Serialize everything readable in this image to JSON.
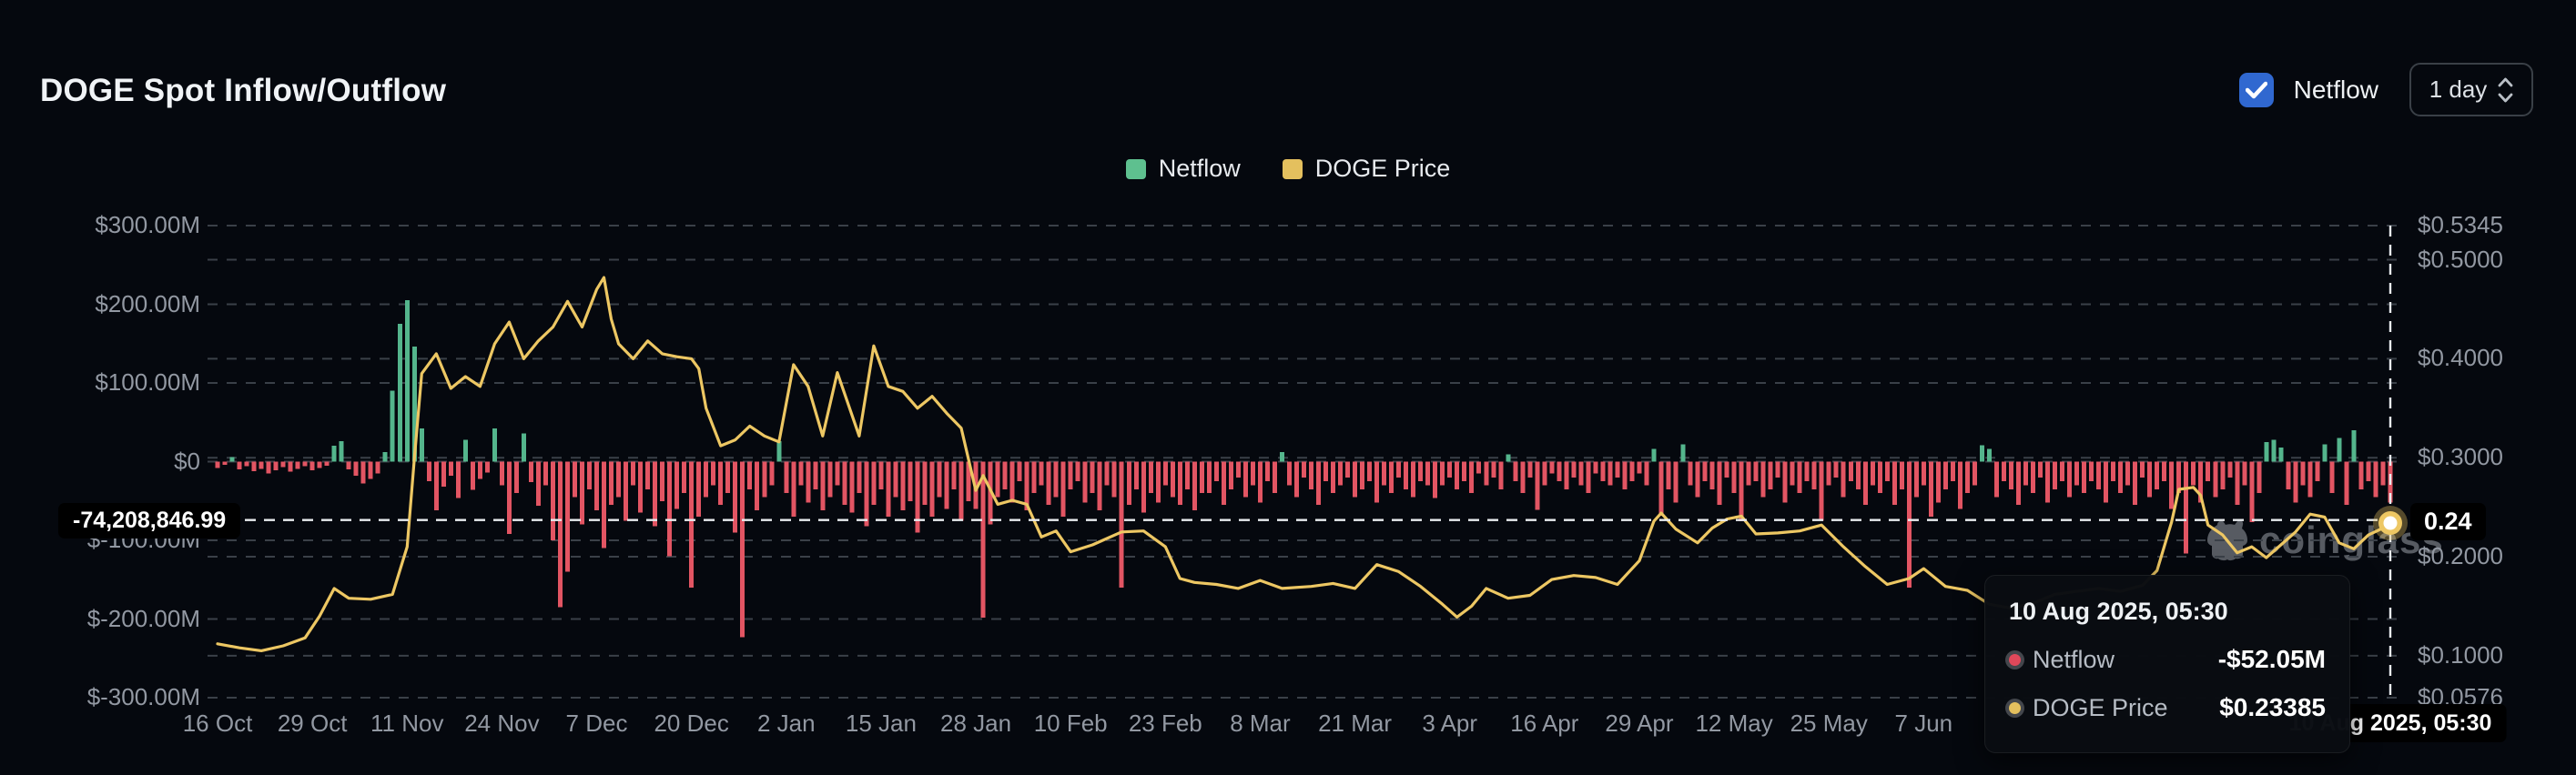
{
  "header": {
    "title": "DOGE Spot Inflow/Outflow",
    "netflow_toggle": {
      "label": "Netflow",
      "checked": true,
      "color": "#3068d0"
    },
    "interval_select": {
      "value": "1 day"
    }
  },
  "legend": [
    {
      "label": "Netflow",
      "color": "#5ec08f"
    },
    {
      "label": "DOGE Price",
      "color": "#e4c05e"
    }
  ],
  "watermark": {
    "text": "coinglass"
  },
  "axes": {
    "left_ticks": [
      {
        "label": "$300.00M",
        "value": 300
      },
      {
        "label": "$200.00M",
        "value": 200
      },
      {
        "label": "$100.00M",
        "value": 100
      },
      {
        "label": "$0",
        "value": 0
      },
      {
        "label": "$-100.00M",
        "value": -100
      },
      {
        "label": "$-200.00M",
        "value": -200
      },
      {
        "label": "$-300.00M",
        "value": -300
      }
    ],
    "right_ticks": [
      {
        "label": "$0.5345",
        "value": 0.5345
      },
      {
        "label": "$0.5000",
        "value": 0.5
      },
      {
        "label": "$0.4000",
        "value": 0.4
      },
      {
        "label": "$0.3000",
        "value": 0.3
      },
      {
        "label": "$0.2000",
        "value": 0.2
      },
      {
        "label": "$0.1000",
        "value": 0.1
      },
      {
        "label": "$0.0576",
        "value": 0.0576
      }
    ],
    "x_ticks": [
      {
        "label": "16 Oct",
        "day": 0
      },
      {
        "label": "29 Oct",
        "day": 13
      },
      {
        "label": "11 Nov",
        "day": 26
      },
      {
        "label": "24 Nov",
        "day": 39
      },
      {
        "label": "7 Dec",
        "day": 52
      },
      {
        "label": "20 Dec",
        "day": 65
      },
      {
        "label": "2 Jan",
        "day": 78
      },
      {
        "label": "15 Jan",
        "day": 91
      },
      {
        "label": "28 Jan",
        "day": 104
      },
      {
        "label": "10 Feb",
        "day": 117
      },
      {
        "label": "23 Feb",
        "day": 130
      },
      {
        "label": "8 Mar",
        "day": 143
      },
      {
        "label": "21 Mar",
        "day": 156
      },
      {
        "label": "3 Apr",
        "day": 169
      },
      {
        "label": "16 Apr",
        "day": 182
      },
      {
        "label": "29 Apr",
        "day": 195
      },
      {
        "label": "12 May",
        "day": 208
      },
      {
        "label": "25 May",
        "day": 221
      },
      {
        "label": "7 Jun",
        "day": 234
      }
    ]
  },
  "crosshair": {
    "day": 298,
    "netflow_musd": -74.20884699,
    "price": 0.234,
    "left_label": "-74,208,846.99",
    "right_label": "0.24",
    "date_label": "10 Aug 2025, 05:30"
  },
  "tooltip": {
    "date": "10 Aug 2025, 05:30",
    "rows": [
      {
        "label": "Netflow",
        "value": "-$52.05M",
        "marker_color": "#e0485a"
      },
      {
        "label": "DOGE Price",
        "value": "$0.23385",
        "marker_color": "#e4c05e"
      }
    ]
  },
  "chart_data": {
    "type": "bar+line",
    "title": "DOGE Spot Inflow/Outflow",
    "x_axis": {
      "start_label": "16 Oct",
      "end_label": "10 Aug 2025, 05:30",
      "day_span": 298,
      "grid": "dashed"
    },
    "money_axis": {
      "min": -300,
      "max": 300,
      "unit": "$M",
      "side": "left"
    },
    "price_axis": {
      "min": 0.0576,
      "max": 0.5345,
      "unit": "$",
      "side": "right"
    },
    "colors": {
      "positive": "#54b58c",
      "negative": "#e25563",
      "price_line": "#edc763"
    },
    "series": [
      {
        "name": "Netflow",
        "kind": "bar",
        "unit": "million USD per day, day 0 = 16 Oct",
        "values": [
          -8,
          -4,
          6,
          -10,
          -6,
          -12,
          -9,
          -15,
          -11,
          -7,
          -13,
          -9,
          -6,
          -11,
          -8,
          -5,
          20,
          26,
          -10,
          -18,
          -28,
          -22,
          -15,
          12,
          90,
          175,
          205,
          146,
          42,
          -25,
          -62,
          -32,
          -18,
          -46,
          28,
          -36,
          -22,
          -14,
          42,
          -30,
          -92,
          -40,
          36,
          -26,
          -56,
          -30,
          -100,
          -185,
          -140,
          -45,
          -80,
          -35,
          -62,
          -110,
          -55,
          -45,
          -75,
          -30,
          -65,
          -35,
          -82,
          -50,
          -120,
          -60,
          -40,
          -160,
          -70,
          -45,
          -30,
          -55,
          -40,
          -90,
          -223,
          -35,
          -62,
          -45,
          -30,
          26,
          -40,
          -70,
          -30,
          -52,
          -35,
          -62,
          -45,
          -30,
          -55,
          -65,
          -40,
          -82,
          -55,
          -35,
          -70,
          -45,
          -62,
          -50,
          -90,
          -55,
          -70,
          -45,
          -60,
          -35,
          -75,
          -50,
          -60,
          -198,
          -80,
          -45,
          -35,
          -52,
          -25,
          -62,
          -40,
          -30,
          -55,
          -45,
          -70,
          -35,
          -25,
          -52,
          -40,
          -62,
          -30,
          -45,
          -160,
          -55,
          -35,
          -65,
          -40,
          -52,
          -30,
          -45,
          -55,
          -35,
          -62,
          -40,
          -40,
          -25,
          -55,
          -35,
          -20,
          -45,
          -30,
          -52,
          -25,
          -40,
          12,
          -30,
          -45,
          -20,
          -35,
          -55,
          -25,
          -40,
          -30,
          -20,
          -45,
          -35,
          -25,
          -52,
          -30,
          -40,
          -20,
          -35,
          -45,
          -25,
          -30,
          -46,
          -30,
          -20,
          -35,
          -25,
          -40,
          -15,
          -30,
          -20,
          -35,
          9,
          -25,
          -40,
          -20,
          -61,
          -30,
          -15,
          -25,
          -35,
          -20,
          -30,
          -40,
          -15,
          -25,
          -30,
          -20,
          -35,
          -25,
          -15,
          -30,
          16,
          -69,
          -35,
          -52,
          22,
          -30,
          -45,
          -25,
          -35,
          -55,
          -20,
          -40,
          -76,
          -30,
          -25,
          -45,
          -35,
          -20,
          -52,
          -30,
          -40,
          -25,
          -35,
          -75,
          -30,
          -20,
          -45,
          -25,
          -35,
          -55,
          -30,
          -40,
          -25,
          -55,
          -35,
          -160,
          -45,
          -30,
          -70,
          -52,
          -35,
          -25,
          -60,
          -40,
          -30,
          21,
          16,
          -45,
          -25,
          -35,
          -55,
          -30,
          -40,
          -20,
          -52,
          -35,
          -25,
          -45,
          -30,
          -40,
          -25,
          -35,
          -52,
          -25,
          -40,
          -30,
          -55,
          -20,
          -45,
          -35,
          -25,
          -60,
          -40,
          -117,
          -30,
          -52,
          -25,
          -45,
          -35,
          -20,
          -55,
          -30,
          -77,
          -40,
          25,
          28,
          18,
          -35,
          -52,
          -30,
          -45,
          -25,
          22,
          -40,
          30,
          -55,
          40,
          -35,
          -25,
          -45,
          -30,
          -52.05
        ]
      },
      {
        "name": "DOGE Price",
        "kind": "line",
        "unit": "USD, points are [day, price]",
        "points": [
          [
            0,
            0.112
          ],
          [
            3,
            0.108
          ],
          [
            6,
            0.105
          ],
          [
            9,
            0.11
          ],
          [
            12,
            0.118
          ],
          [
            14,
            0.14
          ],
          [
            16,
            0.168
          ],
          [
            18,
            0.158
          ],
          [
            21,
            0.157
          ],
          [
            24,
            0.162
          ],
          [
            26,
            0.21
          ],
          [
            27,
            0.3
          ],
          [
            28,
            0.385
          ],
          [
            30,
            0.405
          ],
          [
            32,
            0.37
          ],
          [
            34,
            0.382
          ],
          [
            36,
            0.372
          ],
          [
            38,
            0.415
          ],
          [
            40,
            0.437
          ],
          [
            42,
            0.4
          ],
          [
            44,
            0.418
          ],
          [
            46,
            0.432
          ],
          [
            48,
            0.458
          ],
          [
            50,
            0.432
          ],
          [
            52,
            0.47
          ],
          [
            53,
            0.482
          ],
          [
            54,
            0.44
          ],
          [
            55,
            0.415
          ],
          [
            57,
            0.4
          ],
          [
            59,
            0.418
          ],
          [
            61,
            0.405
          ],
          [
            63,
            0.402
          ],
          [
            65,
            0.4
          ],
          [
            66,
            0.39
          ],
          [
            67,
            0.35
          ],
          [
            69,
            0.312
          ],
          [
            71,
            0.318
          ],
          [
            73,
            0.332
          ],
          [
            75,
            0.322
          ],
          [
            77,
            0.316
          ],
          [
            79,
            0.394
          ],
          [
            81,
            0.372
          ],
          [
            83,
            0.322
          ],
          [
            85,
            0.386
          ],
          [
            88,
            0.322
          ],
          [
            90,
            0.413
          ],
          [
            92,
            0.372
          ],
          [
            94,
            0.367
          ],
          [
            96,
            0.35
          ],
          [
            98,
            0.362
          ],
          [
            100,
            0.345
          ],
          [
            102,
            0.33
          ],
          [
            104,
            0.267
          ],
          [
            105,
            0.282
          ],
          [
            107,
            0.253
          ],
          [
            109,
            0.257
          ],
          [
            111,
            0.253
          ],
          [
            113,
            0.22
          ],
          [
            115,
            0.226
          ],
          [
            117,
            0.205
          ],
          [
            120,
            0.212
          ],
          [
            124,
            0.225
          ],
          [
            127,
            0.226
          ],
          [
            130,
            0.21
          ],
          [
            132,
            0.178
          ],
          [
            134,
            0.174
          ],
          [
            137,
            0.172
          ],
          [
            140,
            0.168
          ],
          [
            143,
            0.176
          ],
          [
            146,
            0.168
          ],
          [
            150,
            0.17
          ],
          [
            153,
            0.173
          ],
          [
            156,
            0.168
          ],
          [
            159,
            0.192
          ],
          [
            162,
            0.185
          ],
          [
            165,
            0.17
          ],
          [
            168,
            0.152
          ],
          [
            170,
            0.139
          ],
          [
            172,
            0.15
          ],
          [
            174,
            0.168
          ],
          [
            177,
            0.158
          ],
          [
            180,
            0.161
          ],
          [
            183,
            0.177
          ],
          [
            186,
            0.181
          ],
          [
            189,
            0.179
          ],
          [
            192,
            0.172
          ],
          [
            195,
            0.196
          ],
          [
            197,
            0.236
          ],
          [
            198,
            0.244
          ],
          [
            200,
            0.228
          ],
          [
            203,
            0.214
          ],
          [
            205,
            0.229
          ],
          [
            207,
            0.238
          ],
          [
            209,
            0.241
          ],
          [
            211,
            0.223
          ],
          [
            214,
            0.224
          ],
          [
            217,
            0.226
          ],
          [
            220,
            0.232
          ],
          [
            223,
            0.21
          ],
          [
            226,
            0.19
          ],
          [
            229,
            0.172
          ],
          [
            232,
            0.178
          ],
          [
            234,
            0.188
          ],
          [
            237,
            0.17
          ],
          [
            240,
            0.166
          ],
          [
            243,
            0.152
          ],
          [
            246,
            0.148
          ],
          [
            249,
            0.153
          ],
          [
            252,
            0.162
          ],
          [
            255,
            0.165
          ],
          [
            258,
            0.168
          ],
          [
            261,
            0.165
          ],
          [
            264,
            0.171
          ],
          [
            266,
            0.186
          ],
          [
            268,
            0.235
          ],
          [
            269,
            0.268
          ],
          [
            271,
            0.27
          ],
          [
            272,
            0.262
          ],
          [
            273,
            0.232
          ],
          [
            275,
            0.222
          ],
          [
            277,
            0.204
          ],
          [
            279,
            0.21
          ],
          [
            281,
            0.199
          ],
          [
            283,
            0.212
          ],
          [
            285,
            0.225
          ],
          [
            287,
            0.243
          ],
          [
            289,
            0.24
          ],
          [
            291,
            0.214
          ],
          [
            293,
            0.208
          ],
          [
            295,
            0.222
          ],
          [
            297,
            0.229
          ],
          [
            298,
            0.234
          ]
        ]
      }
    ]
  }
}
